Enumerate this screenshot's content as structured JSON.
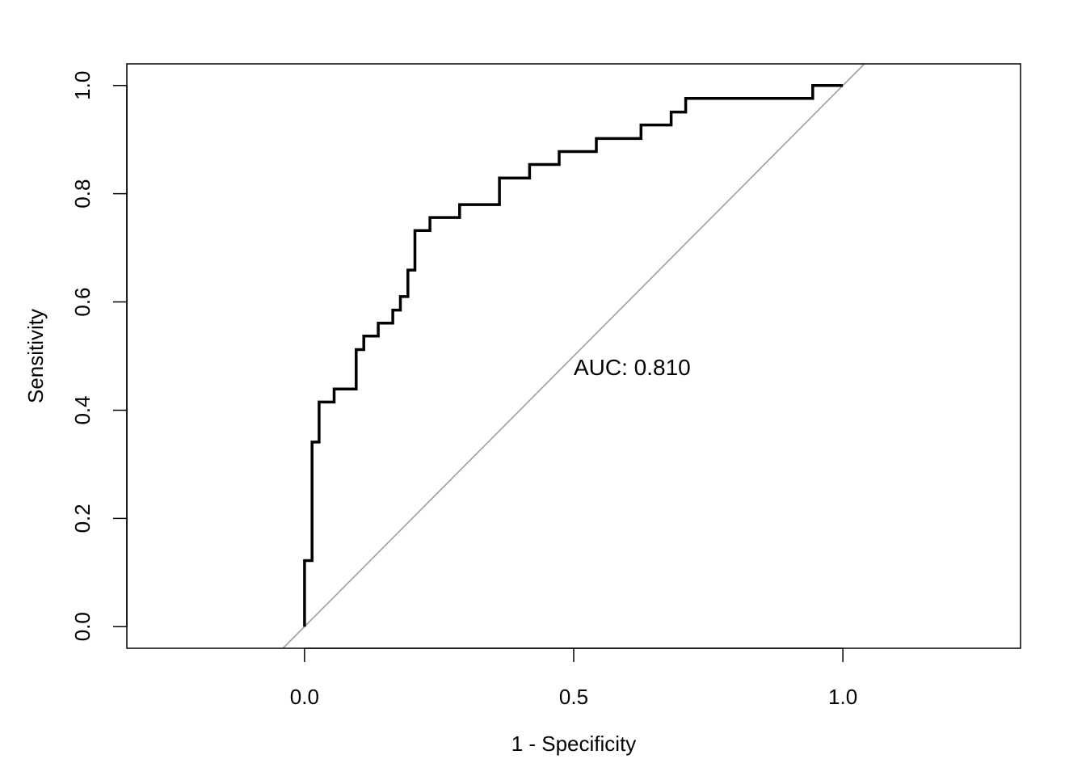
{
  "chart_data": {
    "type": "line",
    "xlabel": "1 - Specificity",
    "ylabel": "Sensitivity",
    "xlim": [
      -0.33,
      1.33
    ],
    "ylim": [
      -0.04,
      1.04
    ],
    "x_ticks": [
      0.0,
      0.5,
      1.0
    ],
    "x_tick_labels": [
      "0.0",
      "0.5",
      "1.0"
    ],
    "y_ticks": [
      0.0,
      0.2,
      0.4,
      0.6,
      0.8,
      1.0
    ],
    "y_tick_labels": [
      "0.0",
      "0.2",
      "0.4",
      "0.6",
      "0.8",
      "1.0"
    ],
    "grid": false,
    "annotation": {
      "text": "AUC: 0.810",
      "x": 0.5,
      "y": 0.48
    },
    "reference_line": {
      "points": [
        [
          -0.04,
          -0.04
        ],
        [
          1.04,
          1.04
        ]
      ],
      "color": "#9e9e9e"
    },
    "series": [
      {
        "color": "#000000",
        "x": [
          0.0,
          0.0,
          0.014,
          0.014,
          0.027,
          0.027,
          0.055,
          0.055,
          0.096,
          0.096,
          0.11,
          0.11,
          0.137,
          0.137,
          0.164,
          0.164,
          0.178,
          0.178,
          0.192,
          0.192,
          0.205,
          0.205,
          0.233,
          0.233,
          0.288,
          0.288,
          0.362,
          0.362,
          0.418,
          0.418,
          0.473,
          0.473,
          0.542,
          0.542,
          0.625,
          0.625,
          0.681,
          0.681,
          0.708,
          0.708,
          0.944,
          0.944,
          1.0
        ],
        "y": [
          0.0,
          0.122,
          0.122,
          0.341,
          0.341,
          0.415,
          0.415,
          0.439,
          0.439,
          0.512,
          0.512,
          0.537,
          0.537,
          0.561,
          0.561,
          0.585,
          0.585,
          0.61,
          0.61,
          0.659,
          0.659,
          0.732,
          0.732,
          0.756,
          0.756,
          0.78,
          0.78,
          0.829,
          0.829,
          0.854,
          0.854,
          0.878,
          0.878,
          0.902,
          0.902,
          0.927,
          0.927,
          0.951,
          0.951,
          0.976,
          0.976,
          1.0,
          1.0
        ]
      }
    ]
  }
}
